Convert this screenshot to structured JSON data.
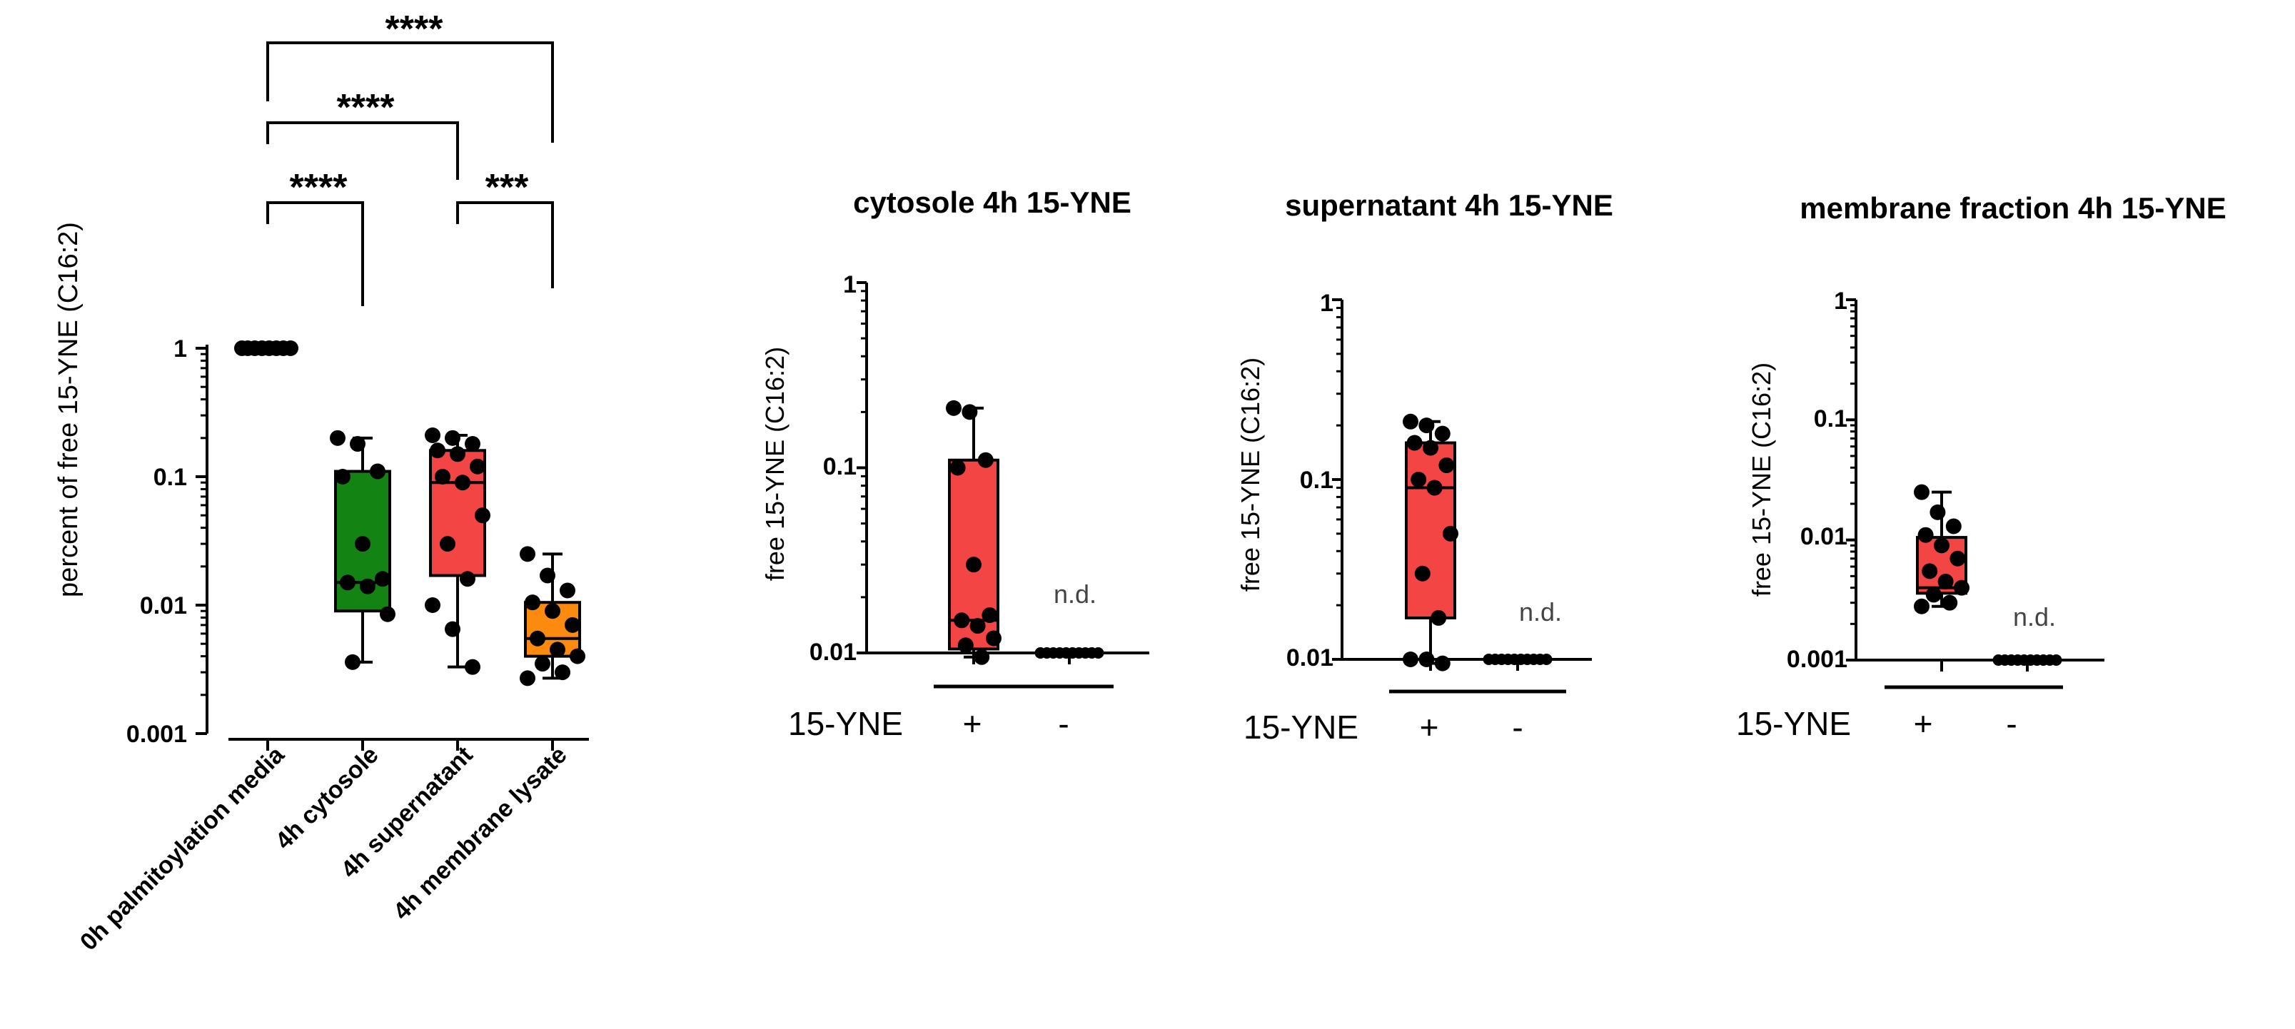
{
  "colors": {
    "green": "#138313",
    "red": "#f44545",
    "orange": "#fc8a0e",
    "black": "#000000",
    "nd_text": "#444444"
  },
  "chart_data": [
    {
      "type": "box",
      "title": "",
      "ylabel": "percent of free 15-YNE (C16:2)",
      "yscale": "log",
      "ylim": [
        0.001,
        1
      ],
      "yticks": [
        "1",
        "0.1",
        "0.01",
        "0.001"
      ],
      "categories": [
        "0h palmitoylation media",
        "4h cytosole",
        "4h supernatant",
        "4h membrane lysate"
      ],
      "colors": [
        "#ffffff",
        "#138313",
        "#f44545",
        "#fc8a0e"
      ],
      "boxes": [
        {
          "min": 0.95,
          "q1": 0.97,
          "median": 1.0,
          "q3": 1.0,
          "max": 1.0
        },
        {
          "min": 0.0036,
          "q1": 0.009,
          "median": 0.015,
          "q3": 0.11,
          "max": 0.2
        },
        {
          "min": 0.0033,
          "q1": 0.017,
          "median": 0.09,
          "q3": 0.16,
          "max": 0.21
        },
        {
          "min": 0.0027,
          "q1": 0.004,
          "median": 0.0055,
          "q3": 0.0105,
          "max": 0.025
        }
      ],
      "points": [
        [
          1,
          1,
          1,
          1,
          1,
          1,
          1,
          1
        ],
        [
          0.2,
          0.18,
          0.11,
          0.1,
          0.03,
          0.016,
          0.015,
          0.014,
          0.0085,
          0.0036
        ],
        [
          0.21,
          0.2,
          0.18,
          0.16,
          0.15,
          0.12,
          0.1,
          0.09,
          0.05,
          0.03,
          0.016,
          0.01,
          0.0065,
          0.0033
        ],
        [
          0.025,
          0.017,
          0.013,
          0.0105,
          0.009,
          0.007,
          0.0055,
          0.0045,
          0.004,
          0.0035,
          0.003,
          0.0027
        ]
      ],
      "significance": [
        {
          "from": 0,
          "to": 3,
          "label": "****"
        },
        {
          "from": 0,
          "to": 2,
          "label": "****"
        },
        {
          "from": 0,
          "to": 1,
          "label": "****"
        },
        {
          "from": 2,
          "to": 3,
          "label": "***"
        }
      ]
    },
    {
      "type": "box",
      "title": "cytosole 4h 15-YNE",
      "ylabel": "free 15-YNE (C16:2)",
      "yscale": "log",
      "ylim": [
        0.01,
        1
      ],
      "yticks": [
        "1",
        "0.1",
        "0.01"
      ],
      "categories": [
        "+",
        "-"
      ],
      "group_label": "15-YNE",
      "nd_label": "n.d.",
      "box": {
        "min": 0.0095,
        "q1": 0.0105,
        "median": 0.015,
        "q3": 0.11,
        "max": 0.21
      },
      "points_plus": [
        0.21,
        0.2,
        0.11,
        0.1,
        0.03,
        0.016,
        0.015,
        0.014,
        0.012,
        0.011,
        0.0095
      ],
      "points_minus": [
        0.01,
        0.01,
        0.01,
        0.01,
        0.01,
        0.01,
        0.01,
        0.01,
        0.01,
        0.01
      ]
    },
    {
      "type": "box",
      "title": "supernatant  4h 15-YNE",
      "ylabel": "free 15-YNE (C16:2)",
      "yscale": "log",
      "ylim": [
        0.01,
        1
      ],
      "yticks": [
        "1",
        "0.1",
        "0.01"
      ],
      "categories": [
        "+",
        "-"
      ],
      "group_label": "15-YNE",
      "nd_label": "n.d.",
      "box": {
        "min": 0.0095,
        "q1": 0.017,
        "median": 0.09,
        "q3": 0.16,
        "max": 0.21
      },
      "points_plus": [
        0.21,
        0.2,
        0.18,
        0.16,
        0.15,
        0.12,
        0.1,
        0.09,
        0.05,
        0.03,
        0.017,
        0.01,
        0.01,
        0.0095
      ],
      "points_minus": [
        0.01,
        0.01,
        0.01,
        0.01,
        0.01,
        0.01,
        0.01,
        0.01,
        0.01,
        0.01
      ]
    },
    {
      "type": "box",
      "title": "membrane fraction  4h 15-YNE",
      "ylabel": "free 15-YNE (C16:2)",
      "yscale": "log",
      "ylim": [
        0.001,
        1
      ],
      "yticks": [
        "1",
        "0.1",
        "0.01",
        "0.001"
      ],
      "categories": [
        "+",
        "-"
      ],
      "group_label": "15-YNE",
      "nd_label": "n.d.",
      "box": {
        "min": 0.0028,
        "q1": 0.0036,
        "median": 0.004,
        "q3": 0.0105,
        "max": 0.025
      },
      "points_plus": [
        0.025,
        0.017,
        0.013,
        0.011,
        0.009,
        0.007,
        0.0055,
        0.0045,
        0.004,
        0.0035,
        0.003,
        0.0028
      ],
      "points_minus": [
        0.001,
        0.001,
        0.001,
        0.001,
        0.001,
        0.001,
        0.001,
        0.001,
        0.001,
        0.001
      ]
    }
  ]
}
